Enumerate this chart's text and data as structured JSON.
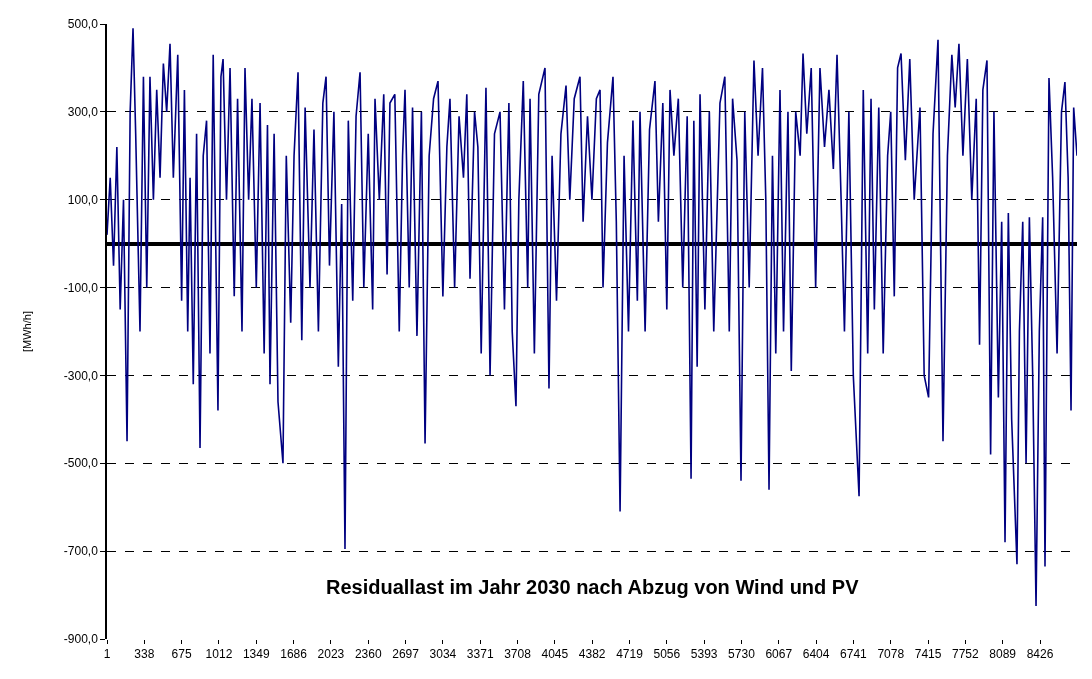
{
  "chart_data": {
    "type": "line",
    "title": "Residuallast im Jahr 2030 nach Abzug von Wind und PV",
    "ylabel": "[MWh/h]",
    "x": [
      1,
      30,
      60,
      90,
      120,
      150,
      182,
      210,
      236,
      260,
      299,
      330,
      360,
      389,
      420,
      450,
      480,
      510,
      540,
      570,
      600,
      640,
      675,
      700,
      730,
      751,
      780,
      810,
      841,
      870,
      900,
      931,
      960,
      1003,
      1030,
      1049,
      1080,
      1112,
      1150,
      1180,
      1220,
      1247,
      1280,
      1310,
      1349,
      1383,
      1420,
      1450,
      1473,
      1510,
      1545,
      1590,
      1620,
      1660,
      1690,
      1726,
      1760,
      1790,
      1834,
      1870,
      1910,
      1950,
      1979,
      2010,
      2050,
      2090,
      2120,
      2150,
      2180,
      2220,
      2250,
      2286,
      2320,
      2360,
      2400,
      2421,
      2460,
      2500,
      2530,
      2556,
      2600,
      2640,
      2670,
      2692,
      2730,
      2760,
      2800,
      2840,
      2873,
      2910,
      2950,
      2990,
      3034,
      3070,
      3098,
      3140,
      3180,
      3220,
      3250,
      3279,
      3320,
      3350,
      3380,
      3423,
      3460,
      3500,
      3550,
      3590,
      3630,
      3660,
      3694,
      3720,
      3760,
      3800,
      3821,
      3860,
      3900,
      3956,
      3992,
      4020,
      4060,
      4100,
      4146,
      4180,
      4220,
      4272,
      4300,
      4340,
      4380,
      4420,
      4453,
      4480,
      4520,
      4570,
      4600,
      4634,
      4670,
      4710,
      4750,
      4790,
      4814,
      4860,
      4900,
      4949,
      4980,
      5020,
      5056,
      5085,
      5120,
      5160,
      5200,
      5240,
      5275,
      5300,
      5330,
      5356,
      5400,
      5440,
      5480,
      5536,
      5580,
      5620,
      5650,
      5690,
      5726,
      5760,
      5800,
      5843,
      5880,
      5920,
      5950,
      5979,
      6010,
      6040,
      6078,
      6110,
      6150,
      6180,
      6220,
      6260,
      6286,
      6320,
      6360,
      6400,
      6439,
      6480,
      6520,
      6560,
      6593,
      6630,
      6660,
      6700,
      6740,
      6792,
      6830,
      6870,
      6900,
      6930,
      6970,
      7010,
      7050,
      7078,
      7110,
      7140,
      7171,
      7210,
      7250,
      7290,
      7342,
      7380,
      7420,
      7460,
      7505,
      7550,
      7590,
      7630,
      7660,
      7694,
      7730,
      7770,
      7810,
      7850,
      7880,
      7910,
      7947,
      7980,
      8010,
      8050,
      8080,
      8110,
      8140,
      8170,
      8218,
      8240,
      8270,
      8300,
      8330,
      8360,
      8390,
      8420,
      8450,
      8471,
      8507,
      8540,
      8580,
      8620,
      8651,
      8680,
      8706,
      8730,
      8760
    ],
    "series": [
      {
        "color": "#000080",
        "values": [
          20,
          150,
          -50,
          220,
          -150,
          100,
          -450,
          300,
          490,
          250,
          -200,
          380,
          -100,
          380,
          100,
          350,
          150,
          410,
          300,
          455,
          150,
          430,
          -130,
          350,
          -200,
          150,
          -320,
          250,
          -465,
          200,
          280,
          -250,
          430,
          -380,
          380,
          420,
          100,
          400,
          -120,
          330,
          -200,
          400,
          100,
          330,
          -100,
          320,
          -250,
          270,
          -320,
          250,
          -360,
          -500,
          200,
          -180,
          200,
          390,
          -220,
          310,
          -100,
          260,
          -200,
          320,
          380,
          -50,
          300,
          -280,
          90,
          -695,
          280,
          -130,
          290,
          390,
          -100,
          250,
          -150,
          330,
          100,
          340,
          -70,
          320,
          340,
          -200,
          200,
          350,
          -100,
          310,
          -210,
          300,
          -455,
          200,
          330,
          370,
          -120,
          220,
          330,
          -100,
          290,
          150,
          340,
          -80,
          300,
          220,
          -250,
          355,
          -300,
          250,
          300,
          -150,
          320,
          -200,
          -370,
          100,
          370,
          -100,
          330,
          -250,
          340,
          400,
          -330,
          200,
          -130,
          250,
          360,
          100,
          330,
          380,
          50,
          290,
          100,
          330,
          350,
          -100,
          230,
          380,
          50,
          -610,
          200,
          -200,
          280,
          -130,
          300,
          -200,
          260,
          370,
          50,
          320,
          -150,
          350,
          200,
          330,
          -100,
          290,
          -535,
          280,
          -280,
          340,
          -150,
          300,
          -200,
          320,
          380,
          -200,
          330,
          190,
          -540,
          300,
          -100,
          417,
          200,
          400,
          100,
          -560,
          200,
          -250,
          350,
          -200,
          300,
          -290,
          300,
          200,
          433,
          250,
          400,
          -100,
          400,
          220,
          350,
          170,
          430,
          100,
          -200,
          300,
          -300,
          -575,
          350,
          -250,
          330,
          -150,
          310,
          -250,
          200,
          300,
          -120,
          400,
          433,
          190,
          420,
          100,
          310,
          -300,
          -350,
          250,
          464,
          -450,
          200,
          430,
          310,
          455,
          200,
          420,
          100,
          330,
          -230,
          350,
          417,
          -480,
          300,
          -350,
          50,
          -680,
          70,
          -400,
          -730,
          -200,
          50,
          -500,
          60,
          -300,
          -825,
          -200,
          60,
          -735,
          377,
          150,
          -250,
          300,
          368,
          150,
          -380,
          310,
          200
        ]
      }
    ],
    "xlim": [
      1,
      8760
    ],
    "xticks": [
      1,
      338,
      675,
      1012,
      1349,
      1686,
      2023,
      2360,
      2697,
      3034,
      3371,
      3708,
      4045,
      4382,
      4719,
      5056,
      5393,
      5730,
      6067,
      6404,
      6741,
      7078,
      7415,
      7752,
      8089,
      8426
    ],
    "ylim": [
      -900,
      500
    ],
    "yticks": [
      {
        "value": 500,
        "label": "500,0"
      },
      {
        "value": 300,
        "label": "300,0"
      },
      {
        "value": 100,
        "label": "100,0"
      },
      {
        "value": -100,
        "label": "-100,0"
      },
      {
        "value": -300,
        "label": "-300,0"
      },
      {
        "value": -500,
        "label": "-500,0"
      },
      {
        "value": -700,
        "label": "-700,0"
      },
      {
        "value": -900,
        "label": "-900,0"
      }
    ],
    "grid": "y",
    "line_style": "solid",
    "marker": "none"
  }
}
